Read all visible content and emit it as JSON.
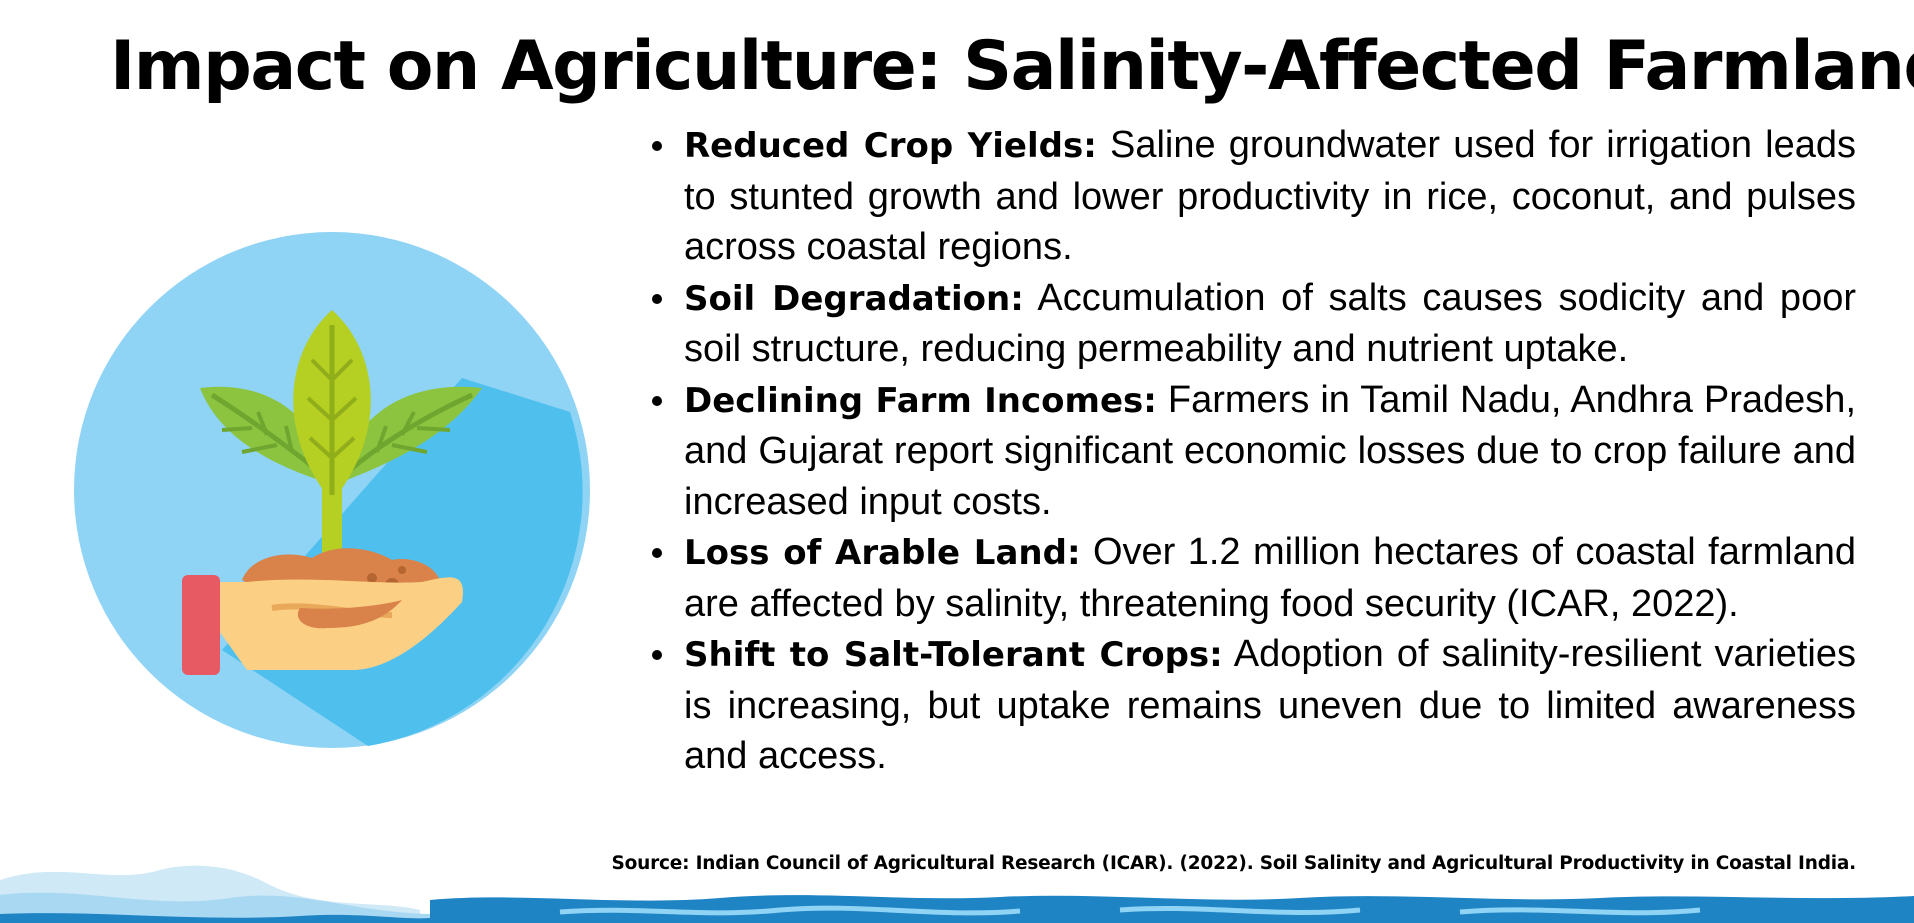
{
  "title": "Impact on Agriculture: Salinity-Affected Farmland",
  "illustration": {
    "icon": "plant-in-hand-icon"
  },
  "bullets": [
    {
      "heading": "Reduced Crop Yields:",
      "text": "Saline groundwater used for irrigation leads to stunted growth and lower productivity in rice, coconut, and pulses across coastal regions."
    },
    {
      "heading": "Soil Degradation:",
      "text": "Accumulation of salts causes sodicity and poor soil structure, reducing permeability and nutrient uptake."
    },
    {
      "heading": "Declining Farm Incomes:",
      "text": "Farmers in Tamil Nadu, Andhra Pradesh, and Gujarat report significant economic losses due to crop failure and increased input costs."
    },
    {
      "heading": "Loss of Arable Land:",
      "text": "Over 1.2 million hectares of coastal farmland are affected by salinity, threatening food security (ICAR, 2022)."
    },
    {
      "heading": "Shift to Salt-Tolerant Crops:",
      "text": "Adoption of salinity-resilient varieties is increasing, but uptake remains uneven due to limited awareness and access."
    }
  ],
  "source": "Source: Indian Council of Agricultural Research (ICAR). (2022). Soil Salinity and Agricultural Productivity in Coastal India.",
  "colors": {
    "circle_light": "#8fd3f5",
    "circle_dark": "#4fc0ee",
    "leaf_green": "#8cc43f",
    "leaf_yellow": "#b5cf23",
    "soil": "#d9824a",
    "hand": "#fbcf84",
    "cuff": "#e85a63",
    "wave_dark": "#1f84c4",
    "wave_light": "#cfe9f7"
  }
}
